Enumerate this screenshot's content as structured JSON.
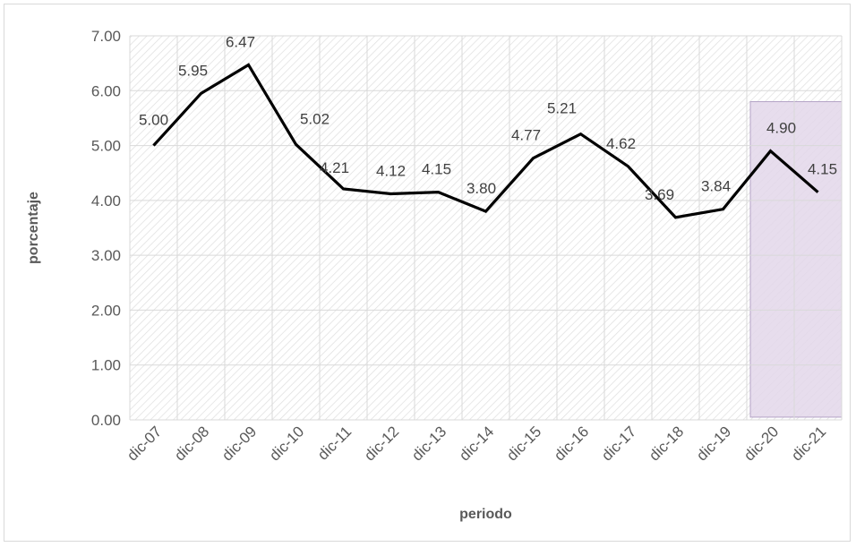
{
  "chart_data": {
    "type": "line",
    "title": "",
    "xlabel": "periodo",
    "ylabel": "porcentaje",
    "categories": [
      "dic-07",
      "dic-08",
      "dic-09",
      "dic-10",
      "dic-11",
      "dic-12",
      "dic-13",
      "dic-14",
      "dic-15",
      "dic-16",
      "dic-17",
      "dic-18",
      "dic-19",
      "dic-20",
      "dic-21"
    ],
    "series": [
      {
        "values": [
          5.0,
          5.95,
          6.47,
          5.02,
          4.21,
          4.12,
          4.15,
          3.8,
          4.77,
          5.21,
          4.62,
          3.69,
          3.84,
          4.9,
          4.15
        ],
        "data_labels": [
          "5.00",
          "5.95",
          "6.47",
          "5.02",
          "4.21",
          "4.12",
          "4.15",
          "3.80",
          "4.77",
          "5.21",
          "4.62",
          "3.69",
          "3.84",
          "4.90",
          "4.15"
        ]
      }
    ],
    "ylim": [
      0,
      7
    ],
    "yticks": [
      0,
      1,
      2,
      3,
      4,
      5,
      6,
      7
    ],
    "ytick_labels": [
      "0.00",
      "1.00",
      "2.00",
      "3.00",
      "4.00",
      "5.00",
      "6.00",
      "7.00"
    ],
    "grid": true,
    "highlight_range": [
      "dic-20",
      "dic-21"
    ],
    "colors": {
      "line": "#000000",
      "highlight_fill": "#e3d7ea",
      "highlight_border": "#b4a3c6",
      "grid": "#d9d9d9",
      "hatch": "#d9d9d9"
    }
  }
}
